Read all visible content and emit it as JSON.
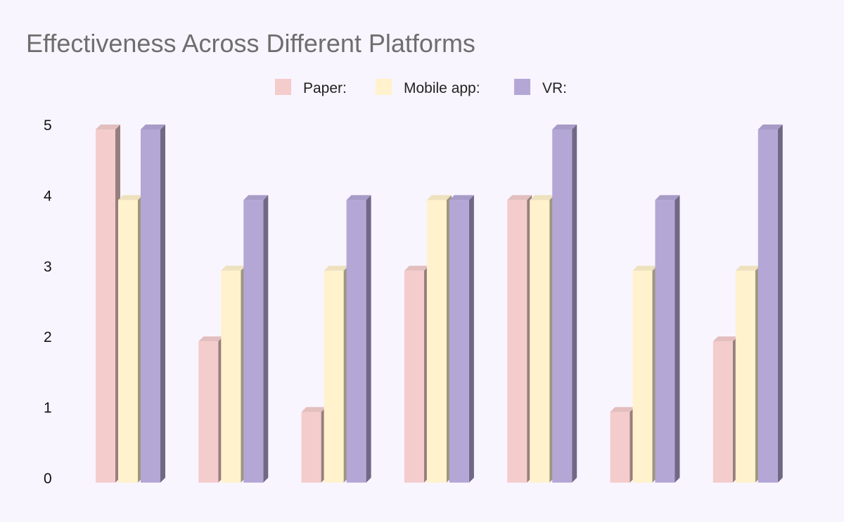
{
  "chart_data": {
    "type": "bar",
    "title": "Effectiveness Across Different Platforms",
    "categories": [
      "",
      "",
      "",
      "",
      "",
      "",
      ""
    ],
    "series": [
      {
        "name": "Paper:",
        "color": "#f4cccc",
        "values": [
          5,
          2,
          1,
          3,
          4,
          1,
          2
        ]
      },
      {
        "name": "Mobile app:",
        "color": "#fff2cc",
        "values": [
          4,
          3,
          3,
          4,
          4,
          3,
          3
        ]
      },
      {
        "name": "VR:",
        "color": "#b4a7d6",
        "values": [
          5,
          4,
          4,
          4,
          5,
          4,
          5
        ]
      }
    ],
    "yticks": [
      "0",
      "1",
      "2",
      "3",
      "4",
      "5"
    ],
    "ylim": [
      0,
      5
    ],
    "xlabel": "",
    "ylabel": "",
    "grid": false,
    "legend_position": "top-center",
    "style": "3d-bars"
  },
  "colors": {
    "background": "#f8f5fe",
    "title": "#6e6e6e"
  }
}
